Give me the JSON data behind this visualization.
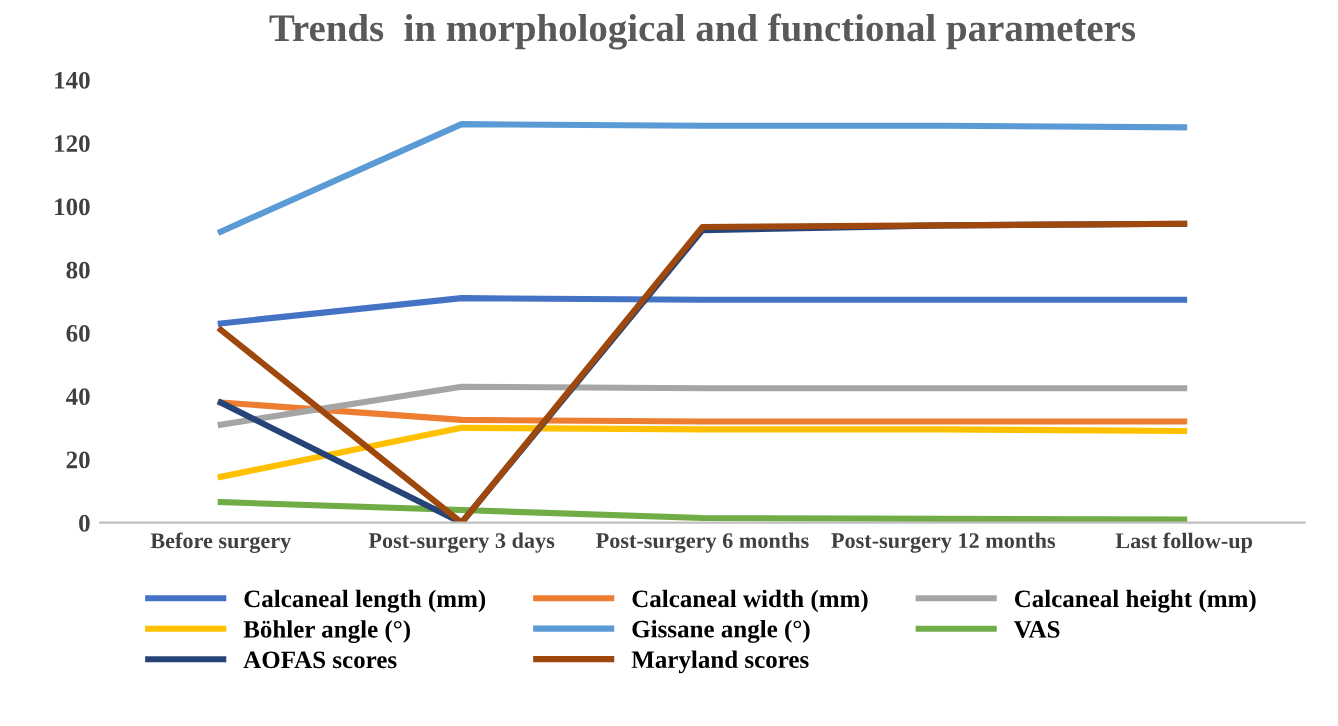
{
  "chart_data": {
    "type": "line",
    "title": "Trends  in morphological and functional parameters",
    "categories": [
      "Before surgery",
      "Post-surgery 3 days",
      "Post-surgery 6 months",
      "Post-surgery 12 months",
      "Last follow-up"
    ],
    "series": [
      {
        "name": "Calcaneal length (mm)",
        "color": "#4472c4",
        "values": [
          63,
          71,
          70.5,
          70.5,
          70.5
        ]
      },
      {
        "name": "Calcaneal width (mm)",
        "color": "#ed7d31",
        "values": [
          38,
          32.5,
          32,
          32,
          32
        ]
      },
      {
        "name": "Calcaneal height (mm)",
        "color": "#a5a5a5",
        "values": [
          31,
          43,
          42.5,
          42.5,
          42.5
        ]
      },
      {
        "name": "Böhler angle (°)",
        "color": "#ffc000",
        "values": [
          14.5,
          30,
          29.5,
          29.5,
          29
        ]
      },
      {
        "name": "Gissane angle (°)",
        "color": "#5b9bd5",
        "values": [
          92,
          126,
          125.5,
          125.5,
          125
        ]
      },
      {
        "name": "VAS",
        "color": "#70ad47",
        "values": [
          6.5,
          4,
          1.5,
          1.2,
          1
        ]
      },
      {
        "name": "AOFAS scores",
        "color": "#264478",
        "values": [
          38,
          0,
          92.5,
          94,
          94.5
        ]
      },
      {
        "name": "Maryland scores",
        "color": "#9e480e",
        "values": [
          61,
          0,
          93.5,
          94,
          94.5
        ]
      }
    ],
    "ylim": [
      0,
      140
    ],
    "yticks": [
      0,
      20,
      40,
      60,
      80,
      100,
      120,
      140
    ],
    "grid": false,
    "legend": "bottom",
    "marker": "none",
    "line_style": "solid"
  }
}
